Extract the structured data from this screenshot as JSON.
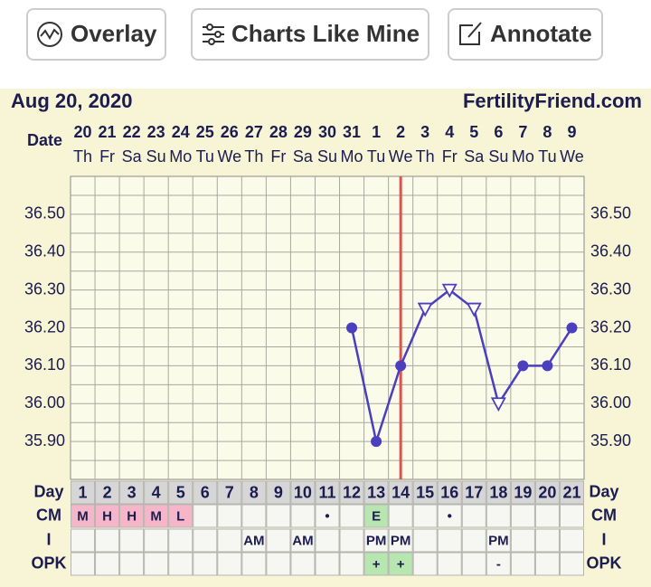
{
  "buttons": [
    "Overlay",
    "Charts Like Mine",
    "Annotate"
  ],
  "chart_data": {
    "type": "line",
    "title": "Aug 20, 2020",
    "subtitle": "FertilityFriend.com",
    "x_label": "Date",
    "categories": [
      "20",
      "21",
      "22",
      "23",
      "24",
      "25",
      "26",
      "27",
      "28",
      "29",
      "30",
      "31",
      "1",
      "2",
      "3",
      "4",
      "5",
      "6",
      "7",
      "8",
      "9"
    ],
    "weekdays": [
      "Th",
      "Fr",
      "Sa",
      "Su",
      "Mo",
      "Tu",
      "We",
      "Th",
      "Fr",
      "Sa",
      "Su",
      "Mo",
      "Tu",
      "We",
      "Th",
      "Fr",
      "Sa",
      "Su",
      "Mo",
      "Tu",
      "We"
    ],
    "values": [
      null,
      null,
      null,
      null,
      null,
      null,
      null,
      null,
      null,
      null,
      null,
      36.2,
      35.9,
      36.1,
      36.25,
      36.3,
      36.25,
      36.0,
      36.1,
      36.1,
      36.2
    ],
    "markers": [
      null,
      null,
      null,
      null,
      null,
      null,
      null,
      null,
      null,
      null,
      null,
      "circle",
      "circle",
      "circle",
      "triangle",
      "triangle",
      "triangle",
      "triangle",
      "circle",
      "circle",
      "circle"
    ],
    "color": "#4b3fbf",
    "ylim": [
      35.8,
      36.6
    ],
    "yticks": [
      {
        "value": 35.9,
        "label": "35.90"
      },
      {
        "value": 36.0,
        "label": "36.00"
      },
      {
        "value": 36.1,
        "label": "36.10"
      },
      {
        "value": 36.2,
        "label": "36.20"
      },
      {
        "value": 36.3,
        "label": "36.30"
      },
      {
        "value": 36.4,
        "label": "36.40"
      },
      {
        "value": 36.5,
        "label": "36.50"
      }
    ],
    "grid": true,
    "highlight_index": 13,
    "highlight_color": "#d9534f"
  },
  "table": {
    "rows": [
      {
        "label": "Day",
        "cells": [
          "1",
          "2",
          "3",
          "4",
          "5",
          "6",
          "7",
          "8",
          "9",
          "10",
          "11",
          "12",
          "13",
          "14",
          "15",
          "16",
          "17",
          "18",
          "19",
          "20",
          "21"
        ]
      },
      {
        "label": "CM",
        "cells": [
          "M",
          "H",
          "H",
          "M",
          "L",
          null,
          null,
          null,
          null,
          null,
          "•",
          null,
          "E",
          null,
          null,
          "•",
          null,
          null,
          null,
          null,
          null
        ],
        "colors": [
          "#f4b6c8",
          "#f4b6c8",
          "#f4b6c8",
          "#f4b6c8",
          "#f4b6c8",
          null,
          null,
          null,
          null,
          null,
          null,
          null,
          "#b8e6b0",
          null,
          null,
          null,
          null,
          null,
          null,
          null,
          null
        ]
      },
      {
        "label": "I",
        "cells": [
          null,
          null,
          null,
          null,
          null,
          null,
          null,
          "AM",
          null,
          "AM",
          null,
          null,
          "PM",
          "PM",
          null,
          null,
          null,
          "PM",
          null,
          null,
          null
        ]
      },
      {
        "label": "OPK",
        "cells": [
          null,
          null,
          null,
          null,
          null,
          null,
          null,
          null,
          null,
          null,
          null,
          null,
          "+",
          "+",
          null,
          null,
          null,
          "-",
          null,
          null,
          null
        ],
        "colors": [
          null,
          null,
          null,
          null,
          null,
          null,
          null,
          null,
          null,
          null,
          null,
          null,
          "#b8e6b0",
          "#b8e6b0",
          null,
          null,
          null,
          null,
          null,
          null,
          null
        ]
      }
    ]
  }
}
